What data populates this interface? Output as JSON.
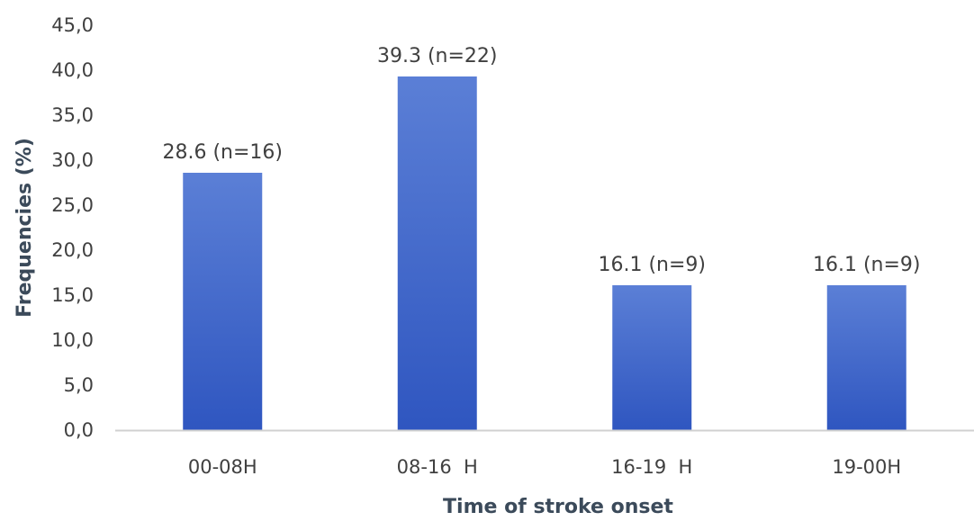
{
  "chart_data": {
    "type": "bar",
    "title": "",
    "xlabel": "Time of stroke onset",
    "ylabel": "Frequencies (%)",
    "categories": [
      "00-08H",
      "08-16  H",
      "16-19  H",
      "19-00H"
    ],
    "values": [
      28.6,
      39.3,
      16.1,
      16.1
    ],
    "data_labels": [
      "28.6 (n=16)",
      "39.3 (n=22)",
      "16.1 (n=9)",
      "16.1 (n=9)"
    ],
    "ylim": [
      0,
      45
    ],
    "yticks": [
      0,
      5,
      10,
      15,
      20,
      25,
      30,
      35,
      40,
      45
    ],
    "ytick_labels": [
      "0,0",
      "5,0",
      "10,0",
      "15,0",
      "20,0",
      "25,0",
      "30,0",
      "35,0",
      "40,0",
      "45,0"
    ],
    "grid": false,
    "legend": "none",
    "colors": {
      "bar_top": "#5b7fd6",
      "bar_bottom": "#2f56c0",
      "axis_line": "#d0d0d0"
    }
  }
}
